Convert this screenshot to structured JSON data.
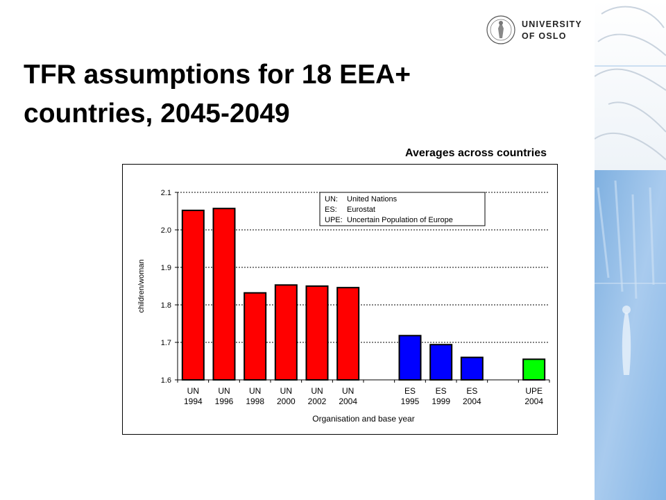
{
  "header": {
    "title_line1": "TFR assumptions for 18 EEA+",
    "title_line2": "countries, 2045-2049",
    "logo_line1": "UNIVERSITY",
    "logo_line2": "OF OSLO"
  },
  "chart_data": {
    "type": "bar",
    "subtitle": "Averages across countries",
    "xlabel": "Organisation and base year",
    "ylabel": "children/woman",
    "ylim": [
      1.6,
      2.1
    ],
    "yticks": [
      "1.6",
      "1.7",
      "1.8",
      "1.9",
      "2.0",
      "2.1"
    ],
    "grid": true,
    "categories": [
      [
        "UN",
        "1994"
      ],
      [
        "UN",
        "1996"
      ],
      [
        "UN",
        "1998"
      ],
      [
        "UN",
        "2000"
      ],
      [
        "UN",
        "2002"
      ],
      [
        "UN",
        "2004"
      ],
      [
        "ES",
        "1995"
      ],
      [
        "ES",
        "1999"
      ],
      [
        "ES",
        "2004"
      ],
      [
        "UPE",
        "2004"
      ]
    ],
    "values": [
      2.052,
      2.057,
      1.832,
      1.853,
      1.85,
      1.846,
      1.718,
      1.694,
      1.66,
      1.655
    ],
    "bar_colors": [
      "#ff0000",
      "#ff0000",
      "#ff0000",
      "#ff0000",
      "#ff0000",
      "#ff0000",
      "#0000ff",
      "#0000ff",
      "#0000ff",
      "#00ff00"
    ],
    "legend_position": "top-right",
    "legend": [
      {
        "key": "UN:",
        "label": "United Nations"
      },
      {
        "key": "ES:",
        "label": "Eurostat"
      },
      {
        "key": "UPE:",
        "label": "Uncertain Population of Europe"
      }
    ]
  }
}
